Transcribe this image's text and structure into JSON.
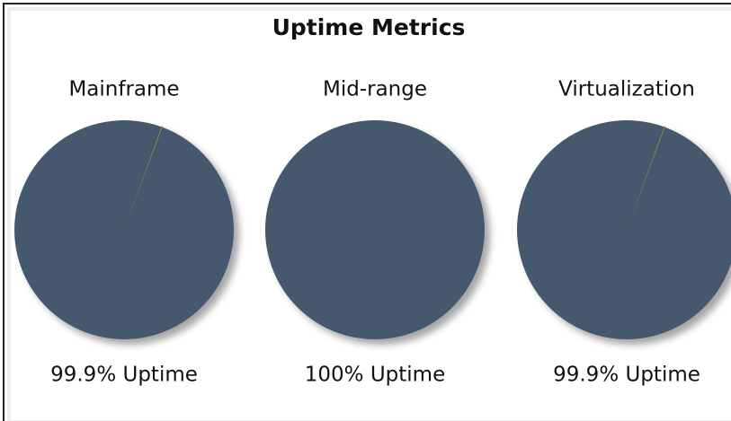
{
  "title": "Uptime Metrics",
  "chart_data": [
    {
      "type": "pie",
      "title": "Mainframe",
      "values": [
        99.9,
        0.1
      ],
      "colors": [
        "#44596e",
        "#b8962e"
      ],
      "label": "99.9% Uptime"
    },
    {
      "type": "pie",
      "title": "Mid-range",
      "values": [
        100,
        0
      ],
      "colors": [
        "#44596e",
        "#b8962e"
      ],
      "label": "100% Uptime"
    },
    {
      "type": "pie",
      "title": "Virtualization",
      "values": [
        99.9,
        0.1
      ],
      "colors": [
        "#44596e",
        "#b8962e"
      ],
      "label": "99.9% Uptime"
    }
  ]
}
